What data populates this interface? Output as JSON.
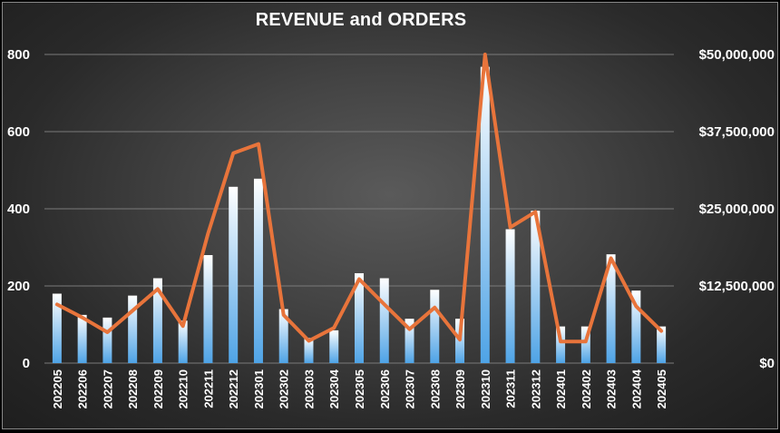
{
  "chart_data": {
    "type": "bar+line",
    "title": "REVENUE and ORDERS",
    "categories": [
      "202205",
      "202206",
      "202207",
      "202208",
      "202209",
      "202210",
      "202211",
      "202212",
      "202301",
      "202302",
      "202303",
      "202304",
      "202305",
      "202306",
      "202307",
      "202308",
      "202309",
      "202310",
      "202311",
      "202312",
      "202401",
      "202402",
      "202403",
      "202404",
      "202405"
    ],
    "series": [
      {
        "kind": "bar",
        "axis": "left",
        "values": [
          180,
          125,
          118,
          175,
          220,
          110,
          280,
          457,
          478,
          140,
          65,
          85,
          233,
          220,
          115,
          190,
          115,
          768,
          347,
          395,
          95,
          95,
          282,
          188,
          95
        ]
      },
      {
        "kind": "line",
        "axis": "right",
        "values": [
          9500000,
          7400000,
          5000000,
          8500000,
          12000000,
          6000000,
          21000000,
          34000000,
          35500000,
          7800000,
          3600000,
          5700000,
          13600000,
          9500000,
          5500000,
          9000000,
          3800000,
          50000000,
          22000000,
          24500000,
          3500000,
          3500000,
          17000000,
          9200000,
          5200000
        ]
      }
    ],
    "yleft": {
      "min": 0,
      "max": 800,
      "ticks": [
        0,
        200,
        400,
        600,
        800
      ],
      "tick_labels": [
        "0",
        "200",
        "400",
        "600",
        "800"
      ]
    },
    "yright": {
      "min": 0,
      "max": 50000000,
      "ticks": [
        0,
        12500000,
        25000000,
        37500000,
        50000000
      ],
      "tick_labels": [
        "$0",
        "$12,500,000",
        "$25,000,000",
        "$37,500,000",
        "$50,000,000"
      ]
    },
    "grid": true,
    "legend": "none",
    "colors": {
      "bar_top": "#ffffff",
      "bar_bottom": "#4ea3e6",
      "line": "#e8743b",
      "grid": "#7a7a7a"
    }
  }
}
